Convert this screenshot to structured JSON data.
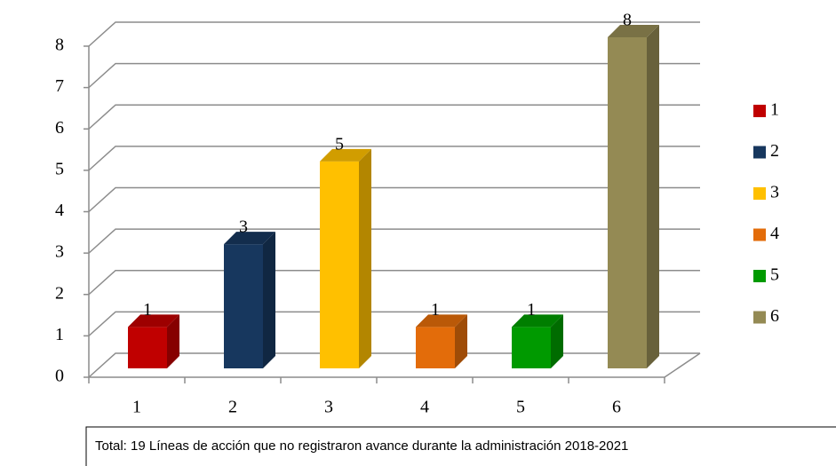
{
  "chart_data": {
    "type": "bar3d",
    "categories": [
      "1",
      "2",
      "3",
      "4",
      "5",
      "6"
    ],
    "values": [
      1,
      3,
      5,
      1,
      1,
      8
    ],
    "colors": [
      "#c00000",
      "#17375e",
      "#ffc000",
      "#e36c0a",
      "#009a00",
      "#948a54"
    ],
    "ylim": [
      0,
      8
    ],
    "yticks": [
      0,
      1,
      2,
      3,
      4,
      5,
      6,
      7,
      8
    ],
    "grid": true,
    "legend": "right"
  },
  "caption": "Total: 19 Líneas de acción que no registraron avance durante la administración 2018-2021"
}
